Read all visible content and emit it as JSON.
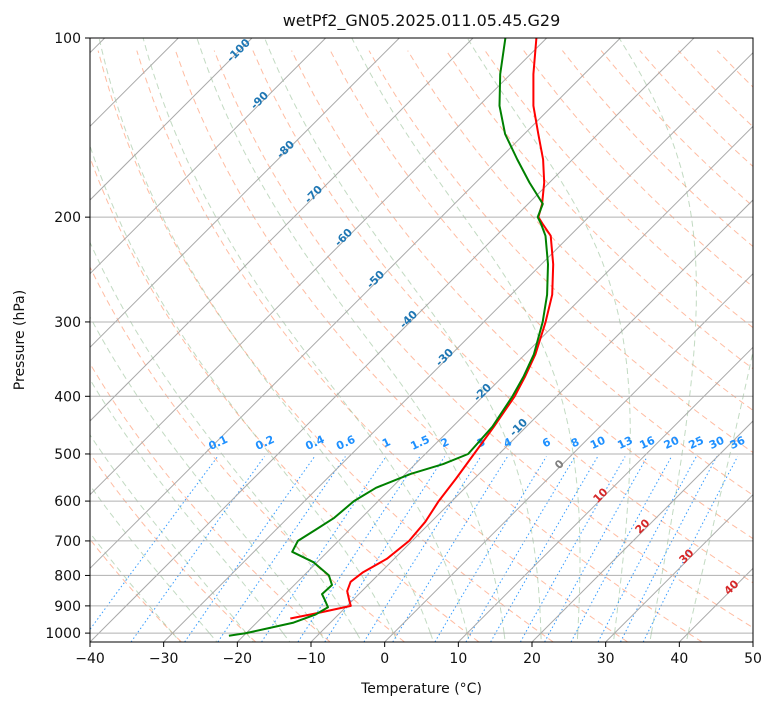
{
  "chart_data": {
    "type": "line",
    "title": "wetPf2_GN05.2025.011.05.45.G29",
    "xlabel": "Temperature (°C)",
    "ylabel": "Pressure (hPa)",
    "xlim": [
      -40,
      50
    ],
    "ylim": [
      1035,
      100
    ],
    "y_scale": "log",
    "x_ticks": [
      -40,
      -30,
      -20,
      -10,
      0,
      10,
      20,
      30,
      40,
      50
    ],
    "y_ticks": [
      100,
      200,
      300,
      400,
      500,
      600,
      700,
      800,
      900,
      1000
    ],
    "grid": true,
    "series": [
      {
        "role": "temperature",
        "color": "#ff0000",
        "points": [
          {
            "p": 945,
            "t": -16.0
          },
          {
            "p": 925,
            "t": -13.0
          },
          {
            "p": 900,
            "t": -9.5
          },
          {
            "p": 880,
            "t": -10.5
          },
          {
            "p": 850,
            "t": -12.0
          },
          {
            "p": 820,
            "t": -12.8
          },
          {
            "p": 790,
            "t": -12.4
          },
          {
            "p": 750,
            "t": -11.0
          },
          {
            "p": 700,
            "t": -10.4
          },
          {
            "p": 650,
            "t": -10.8
          },
          {
            "p": 600,
            "t": -11.8
          },
          {
            "p": 550,
            "t": -12.5
          },
          {
            "p": 500,
            "t": -13.4
          },
          {
            "p": 450,
            "t": -14.4
          },
          {
            "p": 400,
            "t": -15.7
          },
          {
            "p": 370,
            "t": -17.0
          },
          {
            "p": 340,
            "t": -18.6
          },
          {
            "p": 300,
            "t": -21.6
          },
          {
            "p": 270,
            "t": -24.4
          },
          {
            "p": 240,
            "t": -28.4
          },
          {
            "p": 215,
            "t": -32.6
          },
          {
            "p": 205,
            "t": -35.4
          },
          {
            "p": 200,
            "t": -36.8
          },
          {
            "p": 190,
            "t": -38.1
          },
          {
            "p": 175,
            "t": -40.7
          },
          {
            "p": 160,
            "t": -44.0
          },
          {
            "p": 145,
            "t": -48.1
          },
          {
            "p": 130,
            "t": -52.6
          },
          {
            "p": 115,
            "t": -56.9
          },
          {
            "p": 100,
            "t": -61.4
          }
        ]
      },
      {
        "role": "dewpoint",
        "color": "#008000",
        "points": [
          {
            "p": 1010,
            "t": -22.0
          },
          {
            "p": 1000,
            "t": -20.0
          },
          {
            "p": 980,
            "t": -17.5
          },
          {
            "p": 960,
            "t": -15.0
          },
          {
            "p": 930,
            "t": -13.1
          },
          {
            "p": 905,
            "t": -12.4
          },
          {
            "p": 880,
            "t": -13.8
          },
          {
            "p": 860,
            "t": -15.0
          },
          {
            "p": 830,
            "t": -14.9
          },
          {
            "p": 800,
            "t": -16.6
          },
          {
            "p": 760,
            "t": -20.5
          },
          {
            "p": 730,
            "t": -24.8
          },
          {
            "p": 700,
            "t": -25.5
          },
          {
            "p": 670,
            "t": -24.6
          },
          {
            "p": 640,
            "t": -23.7
          },
          {
            "p": 600,
            "t": -23.3
          },
          {
            "p": 570,
            "t": -22.1
          },
          {
            "p": 540,
            "t": -19.3
          },
          {
            "p": 520,
            "t": -16.2
          },
          {
            "p": 500,
            "t": -14.2
          },
          {
            "p": 450,
            "t": -14.6
          },
          {
            "p": 400,
            "t": -16.0
          },
          {
            "p": 370,
            "t": -17.2
          },
          {
            "p": 340,
            "t": -18.8
          },
          {
            "p": 300,
            "t": -22.0
          },
          {
            "p": 270,
            "t": -25.1
          },
          {
            "p": 240,
            "t": -29.1
          },
          {
            "p": 215,
            "t": -33.3
          },
          {
            "p": 205,
            "t": -35.6
          },
          {
            "p": 200,
            "t": -36.9
          },
          {
            "p": 190,
            "t": -38.0
          },
          {
            "p": 175,
            "t": -42.7
          },
          {
            "p": 160,
            "t": -47.5
          },
          {
            "p": 145,
            "t": -52.6
          },
          {
            "p": 130,
            "t": -57.2
          },
          {
            "p": 115,
            "t": -61.4
          },
          {
            "p": 100,
            "t": -65.6
          }
        ]
      }
    ],
    "overlays": {
      "isotherm_color": "#a9a9a9",
      "dry_adiabat_color": "#ffa07a",
      "moist_adiabat_color": "#8fbc8f",
      "mixing_ratio_color": "#1e90ff",
      "isotherm_labels": {
        "color": "#1f77b4",
        "values": [
          "-100",
          "-90",
          "-80",
          "-70",
          "-60",
          "-50",
          "-40",
          "-30",
          "-20",
          "-10"
        ]
      },
      "mixing_ratio_labels": {
        "color": "#1e90ff",
        "values": [
          "0.1",
          "0.2",
          "0.4",
          "0.6",
          "1",
          "1.5",
          "2",
          "3",
          "4",
          "6",
          "8",
          "10",
          "13",
          "16",
          "20",
          "25",
          "30",
          "36"
        ]
      },
      "warm_isotherm_labels": {
        "color": "#d62728",
        "values": [
          "10",
          "20",
          "30",
          "40"
        ]
      },
      "zero_label": {
        "color": "#808080",
        "value": "0"
      }
    }
  }
}
